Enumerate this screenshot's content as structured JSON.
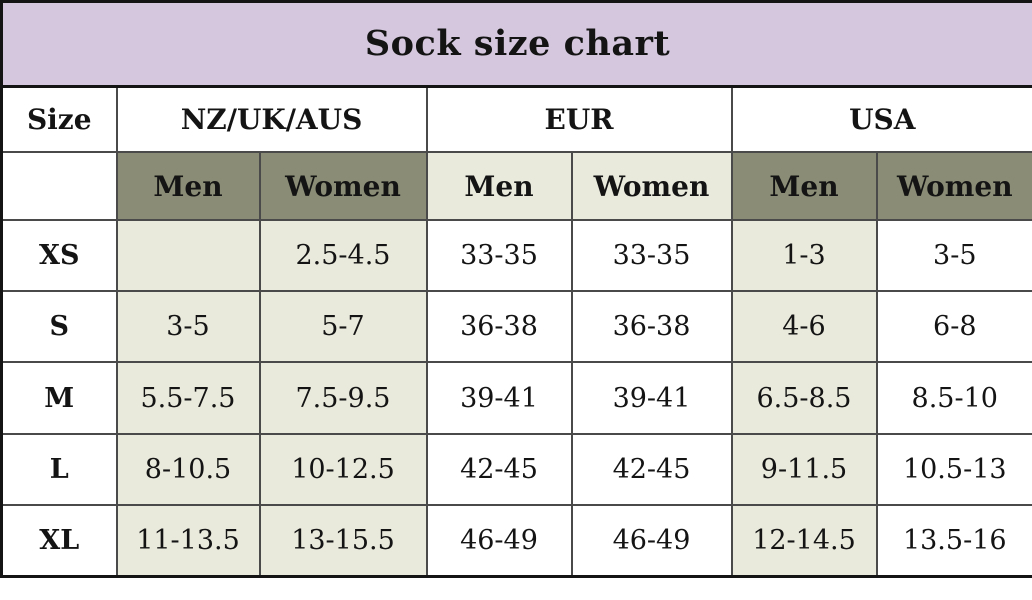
{
  "title": "Sock size chart",
  "colors": {
    "title_bg": "#d5c8de",
    "olive": "#8a8c75",
    "cream": "#e9e9dc",
    "white": "#ffffff",
    "grid": "#4a4a4a",
    "frame": "#141414",
    "text": "#141414"
  },
  "table": {
    "corner_label": "Size",
    "groups": [
      {
        "label": "NZ/UK/AUS"
      },
      {
        "label": "EUR"
      },
      {
        "label": "USA"
      }
    ],
    "subheader": [
      "Men",
      "Women",
      "Men",
      "Women",
      "Men",
      "Women"
    ],
    "rows": [
      {
        "size": "XS",
        "cells": [
          "",
          "2.5-4.5",
          "33-35",
          "33-35",
          "1-3",
          "3-5"
        ]
      },
      {
        "size": "S",
        "cells": [
          "3-5",
          "5-7",
          "36-38",
          "36-38",
          "4-6",
          "6-8"
        ]
      },
      {
        "size": "M",
        "cells": [
          "5.5-7.5",
          "7.5-9.5",
          "39-41",
          "39-41",
          "6.5-8.5",
          "8.5-10"
        ]
      },
      {
        "size": "L",
        "cells": [
          "8-10.5",
          "10-12.5",
          "42-45",
          "42-45",
          "9-11.5",
          "10.5-13"
        ]
      },
      {
        "size": "XL",
        "cells": [
          "11-13.5",
          "13-15.5",
          "46-49",
          "46-49",
          "12-14.5",
          "13.5-16"
        ]
      }
    ]
  },
  "chart_data": {
    "type": "table",
    "title": "Sock size chart",
    "column_groups": [
      "NZ/UK/AUS",
      "EUR",
      "USA"
    ],
    "columns": [
      "Size",
      "NZ/UK/AUS Men",
      "NZ/UK/AUS Women",
      "EUR Men",
      "EUR Women",
      "USA Men",
      "USA Women"
    ],
    "rows": [
      [
        "XS",
        "",
        "2.5-4.5",
        "33-35",
        "33-35",
        "1-3",
        "3-5"
      ],
      [
        "S",
        "3-5",
        "5-7",
        "36-38",
        "36-38",
        "4-6",
        "6-8"
      ],
      [
        "M",
        "5.5-7.5",
        "7.5-9.5",
        "39-41",
        "39-41",
        "6.5-8.5",
        "8.5-10"
      ],
      [
        "L",
        "8-10.5",
        "10-12.5",
        "42-45",
        "42-45",
        "9-11.5",
        "10.5-13"
      ],
      [
        "XL",
        "11-13.5",
        "13-15.5",
        "46-49",
        "46-49",
        "12-14.5",
        "13.5-16"
      ]
    ]
  }
}
